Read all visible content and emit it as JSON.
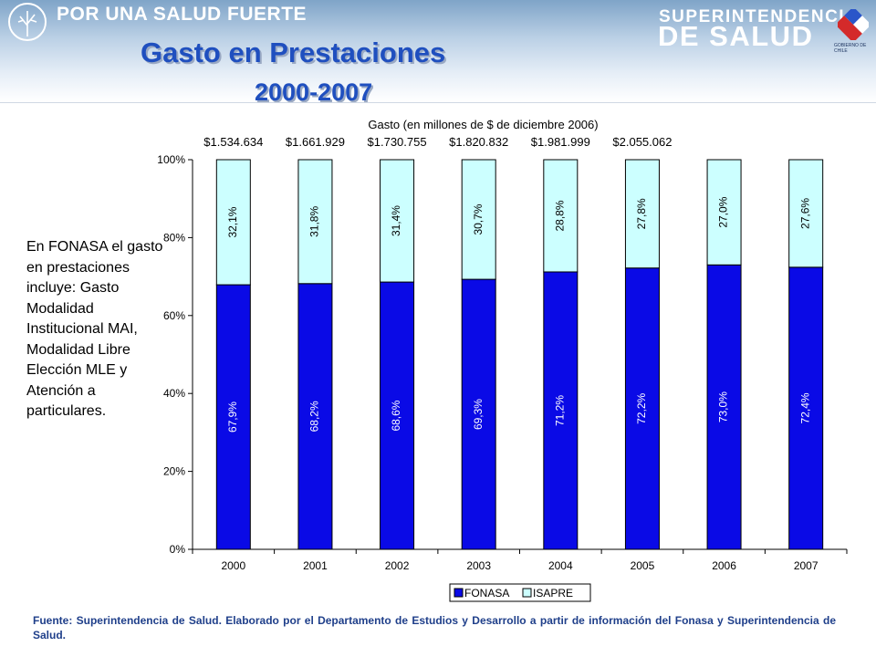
{
  "header": {
    "brand_left": "POR UNA SALUD FUERTE",
    "brand_right_top": "SUPERINTENDENCIA",
    "brand_right_main": "DE SALUD",
    "seal_caption": "GOBIERNO DE CHILE"
  },
  "slide": {
    "title": "Gasto en Prestaciones",
    "subtitle": "2000-2007",
    "side_note": "En FONASA el gasto en prestaciones incluye: Gasto Modalidad Institucional MAI, Modalidad Libre Elección MLE y Atención a particulares.",
    "source": "Fuente: Superintendencia de Salud. Elaborado por el Departamento de Estudios y Desarrollo a partir de información del Fonasa y Superintendencia de Salud."
  },
  "colors": {
    "fonasa": "#0a0ae6",
    "isapre": "#ccffff",
    "title": "#1f4fbf"
  },
  "chart_data": {
    "type": "bar",
    "stacked": true,
    "title": "Gasto (en millones de $ de diciembre 2006)",
    "categories": [
      "2000",
      "2001",
      "2002",
      "2003",
      "2004",
      "2005",
      "2006",
      "2007"
    ],
    "totals": [
      "$1.534.634",
      "$1.661.929",
      "$1.730.755",
      "$1.820.832",
      "$1.981.999",
      "$2.055.062"
    ],
    "series": [
      {
        "name": "FONASA",
        "values": [
          67.9,
          68.2,
          68.6,
          69.3,
          71.2,
          72.2,
          73.0,
          72.4
        ],
        "labels": [
          "67,9%",
          "68,2%",
          "68,6%",
          "69,3%",
          "71,2%",
          "72,2%",
          "73,0%",
          "72,4%"
        ]
      },
      {
        "name": "ISAPRE",
        "values": [
          32.1,
          31.8,
          31.4,
          30.7,
          28.8,
          27.8,
          27.0,
          27.6
        ],
        "labels": [
          "32,1%",
          "31,8%",
          "31,4%",
          "30,7%",
          "28,8%",
          "27,8%",
          "27,0%",
          "27,6%"
        ]
      }
    ],
    "yticks": [
      "0%",
      "20%",
      "40%",
      "60%",
      "80%",
      "100%"
    ],
    "ylim": [
      0,
      100
    ],
    "grid": false,
    "legend": "bottom"
  }
}
